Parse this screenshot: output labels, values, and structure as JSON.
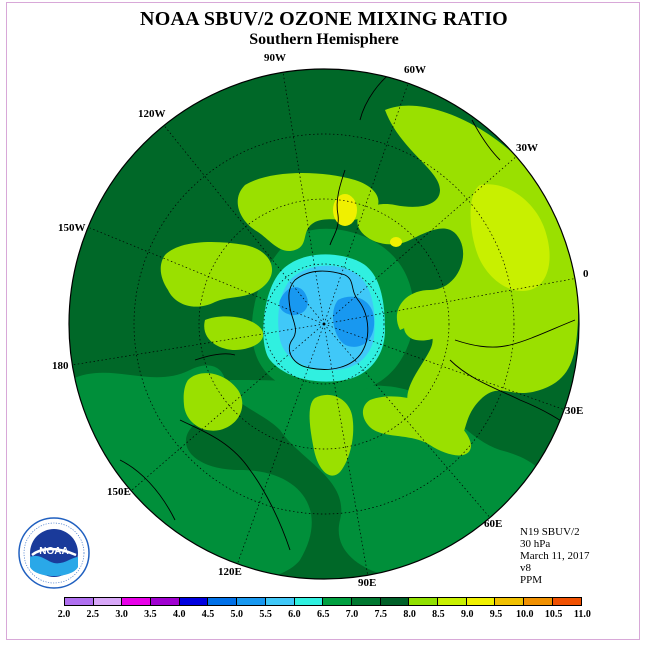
{
  "title": "NOAA SBUV/2 OZONE MIXING RATIO",
  "subtitle": "Southern Hemisphere",
  "longitude_labels": {
    "w90": "90W",
    "w60": "60W",
    "w30": "30W",
    "w120": "120W",
    "w150": "150W",
    "zero": "0",
    "lon180": "180",
    "e30": "30E",
    "e60": "60E",
    "e90": "90E",
    "e120": "120E",
    "e150": "150E"
  },
  "info": {
    "satellite": "N19 SBUV/2",
    "level": "30 hPa",
    "date": "March 11, 2017",
    "version": "v8",
    "units": "PPM"
  },
  "logo": {
    "text": "NOAA",
    "ring_text": "NATIONAL OCEANIC AND ATMOSPHERIC ADMINISTRATION · U.S. DEPARTMENT OF COMMERCE"
  },
  "colorbar": {
    "ticks": [
      "2.0",
      "2.5",
      "3.0",
      "3.5",
      "4.0",
      "4.5",
      "5.0",
      "5.5",
      "6.0",
      "6.5",
      "7.0",
      "7.5",
      "8.0",
      "8.5",
      "9.0",
      "9.5",
      "10.0",
      "10.5",
      "11.0"
    ],
    "colors": [
      "#b070f0",
      "#d8a8f8",
      "#e800e8",
      "#a000d0",
      "#0000e0",
      "#0070e8",
      "#1898f0",
      "#40c8f8",
      "#30f0e0",
      "#00a040",
      "#007830",
      "#006028",
      "#90e000",
      "#c8f000",
      "#f0f000",
      "#f0c000",
      "#f09000",
      "#f05000",
      "#f00000",
      "#805030"
    ]
  },
  "field_colors": {
    "dark_green": "#006828",
    "mid_green": "#008f3a",
    "light_green_a": "#9ae000",
    "light_green_b": "#c8f000",
    "yellow": "#f0f000",
    "cyan": "#30f0e0",
    "light_blue": "#40c8f8",
    "blue": "#1898f0"
  }
}
